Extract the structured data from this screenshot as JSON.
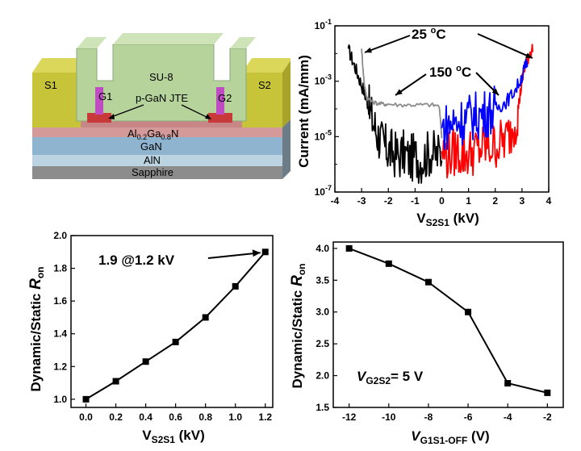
{
  "device": {
    "labels": {
      "su8": "SU-8",
      "s1": "S1",
      "s2": "S2",
      "g1": "G1",
      "g2": "G2",
      "jte": "p-GaN JTE",
      "algan_main": "Al",
      "algan_sub1": "0.2",
      "algan_mid": "Ga",
      "algan_sub2": "0.8",
      "algan_end": "N",
      "gan": "GaN",
      "aln": "AlN",
      "sapphire": "Sapphire"
    },
    "colors": {
      "su8": "#b5d39a",
      "electrode": "#c8c43a",
      "gate": "#c04cc4",
      "pgan": "#c83a3a",
      "algan": "#d49a9a",
      "gan": "#8fb4cf",
      "aln": "#bcd3e2",
      "sapphire": "#8c8c8c"
    }
  },
  "chart_data": [
    {
      "type": "line",
      "title": "",
      "xlabel_main": "V",
      "xlabel_sub": "S2S1",
      "xlabel_unit": " (kV)",
      "ylabel": "Current (mA/mm)",
      "yscale": "log",
      "xlim": [
        -4,
        4
      ],
      "ylim": [
        1e-07,
        0.1
      ],
      "xticks": [
        "-4",
        "-3",
        "-2",
        "-1",
        "0",
        "1",
        "2",
        "3",
        "4"
      ],
      "yticks": [
        {
          "base": "10",
          "exp": "-1"
        },
        {
          "base": "10",
          "exp": "-3"
        },
        {
          "base": "10",
          "exp": "-5"
        },
        {
          "base": "10",
          "exp": "-7"
        }
      ],
      "series": [
        {
          "name": "25 °C negative",
          "color": "#000000",
          "x": [
            -3.5,
            -3.35,
            -3.2,
            -3.05,
            -2.9,
            -2.8,
            -2.7,
            -2.55,
            -2.4,
            -2.25,
            -2.1,
            -1.95,
            -1.8,
            -1.6,
            -1.4,
            -1.2,
            -1.0,
            -0.8,
            -0.6,
            -0.4,
            -0.2,
            0.0
          ],
          "y": [
            0.015,
            0.006,
            0.0025,
            0.001,
            0.0004,
            0.0002,
            8e-05,
            3e-05,
            1.2e-05,
            6e-06,
            4e-06,
            3e-06,
            2.5e-06,
            2e-06,
            2.5e-06,
            1.5e-06,
            2e-06,
            1.5e-06,
            2e-06,
            3e-06,
            2e-06,
            3e-06
          ]
        },
        {
          "name": "150 °C negative",
          "color": "#8c8c8c",
          "x": [
            -3.0,
            -2.95,
            -2.9,
            -2.85,
            -2.8,
            -2.6,
            -2.4,
            -2.2,
            -2.0,
            -1.6,
            -1.2,
            -0.8,
            -0.4,
            -0.1,
            0.0
          ],
          "y": [
            0.015,
            0.003,
            0.0008,
            0.0004,
            0.00025,
            0.00018,
            0.00016,
            0.00015,
            0.00015,
            0.00014,
            0.00014,
            0.00014,
            0.00014,
            0.00013,
            1e-05
          ]
        },
        {
          "name": "25 °C positive",
          "color": "#ff0000",
          "x": [
            0.0,
            0.2,
            0.4,
            0.6,
            0.8,
            1.0,
            1.2,
            1.4,
            1.6,
            1.8,
            2.0,
            2.2,
            2.4,
            2.6,
            2.8,
            2.9,
            3.0,
            3.1,
            3.2,
            3.3,
            3.4
          ],
          "y": [
            3e-06,
            2e-06,
            2.5e-06,
            3e-06,
            2e-06,
            2.5e-06,
            3e-06,
            3.5e-06,
            4e-06,
            4e-06,
            5e-06,
            6e-06,
            8e-06,
            1.5e-05,
            5e-05,
            0.0002,
            0.001,
            0.003,
            0.006,
            0.01,
            0.015
          ]
        },
        {
          "name": "150 °C positive",
          "color": "#0000ff",
          "x": [
            0.0,
            0.2,
            0.4,
            0.6,
            0.8,
            1.0,
            1.2,
            1.4,
            1.6,
            1.8,
            2.0,
            2.2,
            2.4,
            2.6,
            2.8,
            3.0,
            3.1,
            3.2
          ],
          "y": [
            2e-05,
            2.5e-05,
            3e-05,
            3.5e-05,
            4e-05,
            5e-05,
            5.5e-05,
            6e-05,
            7e-05,
            8e-05,
            0.0001,
            0.00013,
            0.00018,
            0.0003,
            0.0006,
            0.0015,
            0.003,
            0.005
          ]
        }
      ],
      "annotations": [
        {
          "text_main": "25 ",
          "text_sup": "o",
          "text_end": "C"
        },
        {
          "text_main": "150 ",
          "text_sup": "o",
          "text_end": "C"
        }
      ]
    },
    {
      "type": "line",
      "xlabel_main": "V",
      "xlabel_sub": "S2S1",
      "xlabel_unit": " (kV)",
      "ylabel_main": "Dynamic/Static ",
      "ylabel_italic": "R",
      "ylabel_sub": "on",
      "xlim": [
        -0.1,
        1.25
      ],
      "ylim": [
        0.95,
        2.0
      ],
      "xticks": [
        0.0,
        0.2,
        0.4,
        0.6,
        0.8,
        1.0,
        1.2
      ],
      "xtick_labels": [
        "0.0",
        "0.2",
        "0.4",
        "0.6",
        "0.8",
        "1.0",
        "1.2"
      ],
      "yticks": [
        1.0,
        1.2,
        1.4,
        1.6,
        1.8,
        2.0
      ],
      "ytick_labels": [
        "1.0",
        "1.2",
        "1.4",
        "1.6",
        "1.8",
        "2.0"
      ],
      "x": [
        0.0,
        0.2,
        0.4,
        0.6,
        0.8,
        1.0,
        1.2
      ],
      "y": [
        1.0,
        1.11,
        1.23,
        1.35,
        1.5,
        1.69,
        1.9
      ],
      "annotation": "1.9 @1.2 kV"
    },
    {
      "type": "line",
      "xlabel_main": "V",
      "xlabel_sub": "G1S1-OFF",
      "xlabel_unit": " (V)",
      "ylabel_main": "Dynamic/Static ",
      "ylabel_italic": "R",
      "ylabel_sub": "on",
      "xlim": [
        -12.8,
        -1.2
      ],
      "ylim": [
        1.5,
        4.1
      ],
      "xticks": [
        -12,
        -10,
        -8,
        -6,
        -4,
        -2
      ],
      "xtick_labels": [
        "-12",
        "-10",
        "-8",
        "-6",
        "-4",
        "-2"
      ],
      "yticks": [
        1.5,
        2.0,
        2.5,
        3.0,
        3.5,
        4.0
      ],
      "ytick_labels": [
        "1.5",
        "2.0",
        "2.5",
        "3.0",
        "3.5",
        "4.0"
      ],
      "x": [
        -12,
        -10,
        -8,
        -6,
        -4,
        -2
      ],
      "y": [
        4.0,
        3.76,
        3.47,
        3.0,
        1.88,
        1.73
      ],
      "annotation_main": "V",
      "annotation_sub": "G2S2",
      "annotation_end": "= 5 V"
    }
  ]
}
